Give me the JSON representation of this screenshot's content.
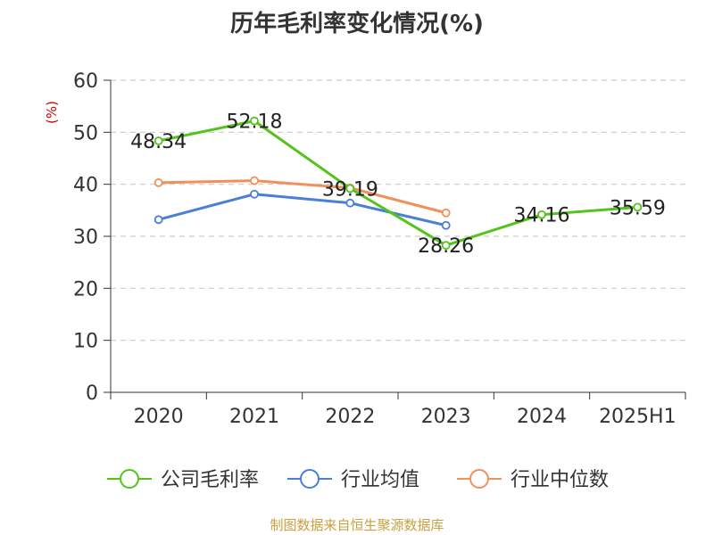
{
  "chart_data": {
    "type": "line",
    "title": "历年毛利率变化情况(%)",
    "ylabel": "(%)",
    "xlabel": "",
    "categories": [
      "2020",
      "2021",
      "2022",
      "2023",
      "2024",
      "2025H1"
    ],
    "ylim": [
      0,
      60
    ],
    "yticks": [
      0,
      10,
      20,
      30,
      40,
      50,
      60
    ],
    "grid": true,
    "legend_position": "bottom",
    "series": [
      {
        "name": "公司毛利率",
        "color": "#52c41a",
        "values": [
          48.34,
          52.18,
          39.19,
          28.26,
          34.16,
          35.59
        ],
        "labels": [
          "48.34",
          "52.18",
          "39.19",
          "28.26",
          "34.16",
          "35.59"
        ]
      },
      {
        "name": "行业均值",
        "color": "#4a7fd8",
        "values": [
          33.2,
          38.1,
          36.4,
          32.1,
          null,
          null
        ],
        "labels": []
      },
      {
        "name": "行业中位数",
        "color": "#f0905a",
        "values": [
          40.3,
          40.7,
          39.3,
          34.5,
          null,
          null
        ],
        "labels": []
      }
    ]
  },
  "footer": {
    "source": "制图数据来自恒生聚源数据库"
  }
}
